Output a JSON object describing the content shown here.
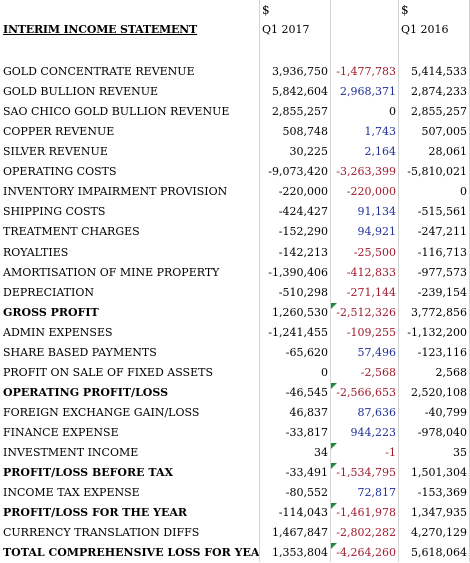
{
  "header": {
    "currency_q1_2017": "$",
    "currency_q1_2016": "$",
    "title": "INTERIM INCOME STATEMENT",
    "col_q1_2017": "Q1 2017",
    "col_q1_2016": "Q1 2016"
  },
  "colors": {
    "positive_change": "#1f2f9a",
    "negative_change": "#a01c2c",
    "comment_marker": "#1e8c3a",
    "gridline": "#d4d4d4"
  },
  "rows": [
    {
      "label": "GOLD CONCENTRATE REVENUE",
      "q1_2017": "3,936,750",
      "change": "-1,477,783",
      "q1_2016": "5,414,533"
    },
    {
      "label": "GOLD BULLION REVENUE",
      "q1_2017": "5,842,604",
      "change": "2,968,371",
      "q1_2016": "2,874,233"
    },
    {
      "label": "SAO CHICO GOLD BULLION REVENUE",
      "q1_2017": "2,855,257",
      "change": "0",
      "q1_2016": "2,855,257"
    },
    {
      "label": "COPPER REVENUE",
      "q1_2017": "508,748",
      "change": "1,743",
      "q1_2016": "507,005"
    },
    {
      "label": "SILVER REVENUE",
      "q1_2017": "30,225",
      "change": "2,164",
      "q1_2016": "28,061"
    },
    {
      "label": "OPERATING COSTS",
      "q1_2017": "-9,073,420",
      "change": "-3,263,399",
      "q1_2016": "-5,810,021"
    },
    {
      "label": "INVENTORY IMPAIRMENT PROVISION",
      "q1_2017": "-220,000",
      "change": "-220,000",
      "q1_2016": "0"
    },
    {
      "label": "SHIPPING COSTS",
      "q1_2017": "-424,427",
      "change": "91,134",
      "q1_2016": "-515,561"
    },
    {
      "label": "TREATMENT CHARGES",
      "q1_2017": "-152,290",
      "change": "94,921",
      "q1_2016": "-247,211"
    },
    {
      "label": "ROYALTIES",
      "q1_2017": "-142,213",
      "change": "-25,500",
      "q1_2016": "-116,713"
    },
    {
      "label": "AMORTISATION OF MINE PROPERTY",
      "q1_2017": "-1,390,406",
      "change": "-412,833",
      "q1_2016": "-977,573"
    },
    {
      "label": "DEPRECIATION",
      "q1_2017": "-510,298",
      "change": "-271,144",
      "q1_2016": "-239,154"
    },
    {
      "label": "GROSS PROFIT",
      "q1_2017": "1,260,530",
      "change": "-2,512,326",
      "q1_2016": "3,772,856"
    },
    {
      "label": "ADMIN EXPENSES",
      "q1_2017": "-1,241,455",
      "change": "-109,255",
      "q1_2016": "-1,132,200"
    },
    {
      "label": "SHARE BASED PAYMENTS",
      "q1_2017": "-65,620",
      "change": "57,496",
      "q1_2016": "-123,116"
    },
    {
      "label": "PROFIT ON SALE OF FIXED ASSETS",
      "q1_2017": "0",
      "change": "-2,568",
      "q1_2016": "2,568"
    },
    {
      "label": "OPERATING PROFIT/LOSS",
      "q1_2017": "-46,545",
      "change": "-2,566,653",
      "q1_2016": "2,520,108"
    },
    {
      "label": "FOREIGN EXCHANGE GAIN/LOSS",
      "q1_2017": "46,837",
      "change": "87,636",
      "q1_2016": "-40,799"
    },
    {
      "label": "FINANCE EXPENSE",
      "q1_2017": "-33,817",
      "change": "944,223",
      "q1_2016": "-978,040"
    },
    {
      "label": "INVESTMENT INCOME",
      "q1_2017": "34",
      "change": "-1",
      "q1_2016": "35"
    },
    {
      "label": "PROFIT/LOSS BEFORE TAX",
      "q1_2017": "-33,491",
      "change": "-1,534,795",
      "q1_2016": "1,501,304"
    },
    {
      "label": "INCOME TAX EXPENSE",
      "q1_2017": "-80,552",
      "change": "72,817",
      "q1_2016": "-153,369"
    },
    {
      "label": "PROFIT/LOSS FOR THE YEAR",
      "q1_2017": "-114,043",
      "change": "-1,461,978",
      "q1_2016": "1,347,935"
    },
    {
      "label": "CURRENCY TRANSLATION DIFFS",
      "q1_2017": "1,467,847",
      "change": "-2,802,282",
      "q1_2016": "4,270,129"
    },
    {
      "label": "TOTAL COMPREHENSIVE  LOSS FOR YEAR",
      "q1_2017": "1,353,804",
      "change": "-4,264,260",
      "q1_2016": "5,618,064"
    }
  ]
}
